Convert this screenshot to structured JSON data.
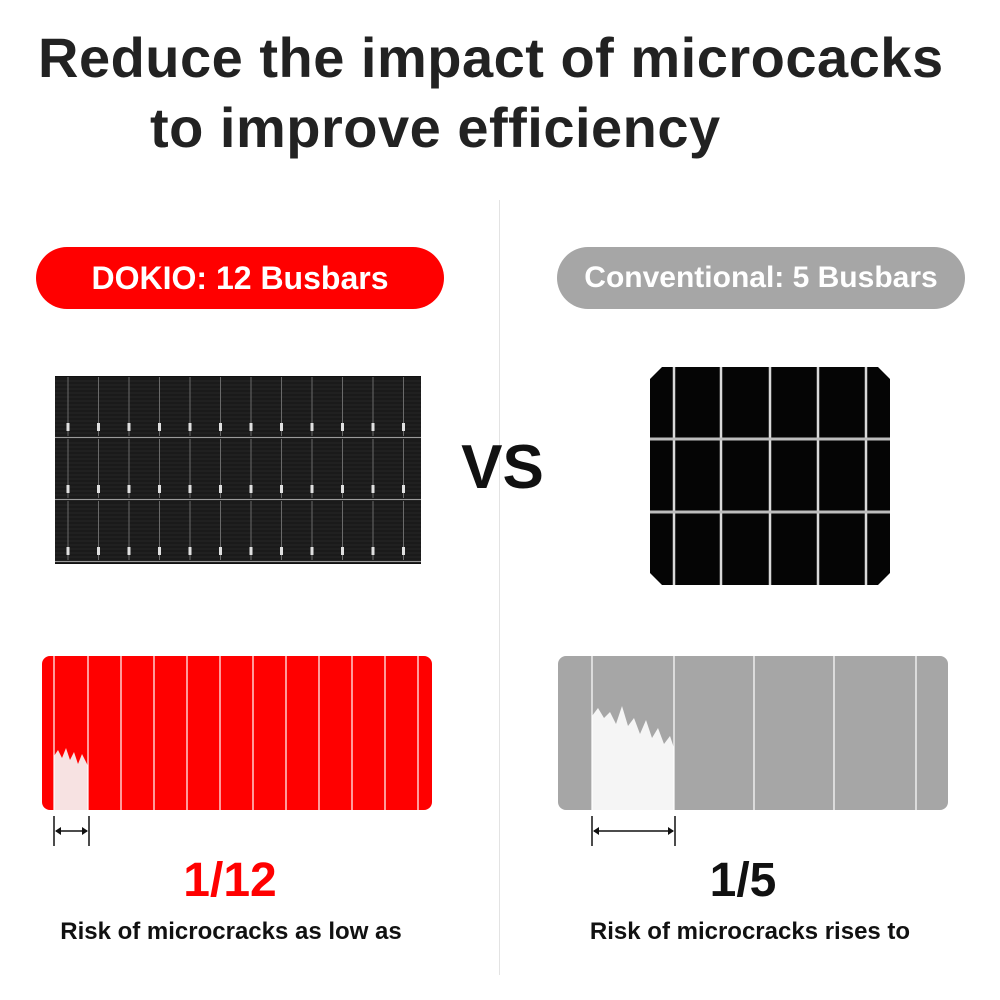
{
  "title": {
    "line1": "Reduce the impact of microcacks",
    "line2": "to improve efficiency"
  },
  "left": {
    "label": "DOKIO: 12 Busbars",
    "fraction": "1/12",
    "caption": "Risk of microcracks as low as",
    "color": "#ff0000"
  },
  "vs_label": "VS",
  "right": {
    "label": "Conventional: 5 Busbars",
    "fraction": "1/5",
    "caption": "Risk of microcracks rises to",
    "color": "#a6a6a6"
  },
  "icons": [
    "solar-panel-12-busbar-icon",
    "solar-cell-5-busbar-icon",
    "double-arrow-icon"
  ]
}
